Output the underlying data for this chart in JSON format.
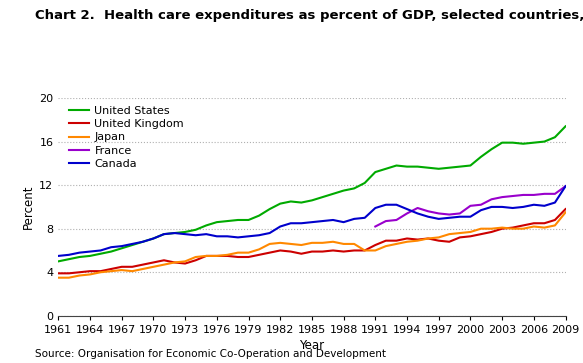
{
  "title": "Chart 2.  Health care expenditures as percent of GDP, selected countries, 1961–2009",
  "xlabel": "Year",
  "ylabel": "Percent",
  "source": "Source: Organisation for Economic Co-Operation and Development",
  "ylim": [
    0,
    20
  ],
  "yticks": [
    0,
    4,
    8,
    12,
    16,
    20
  ],
  "years": [
    1961,
    1962,
    1963,
    1964,
    1965,
    1966,
    1967,
    1968,
    1969,
    1970,
    1971,
    1972,
    1973,
    1974,
    1975,
    1976,
    1977,
    1978,
    1979,
    1980,
    1981,
    1982,
    1983,
    1984,
    1985,
    1986,
    1987,
    1988,
    1989,
    1990,
    1991,
    1992,
    1993,
    1994,
    1995,
    1996,
    1997,
    1998,
    1999,
    2000,
    2001,
    2002,
    2003,
    2004,
    2005,
    2006,
    2007,
    2008,
    2009
  ],
  "united_states": [
    5.0,
    5.2,
    5.4,
    5.5,
    5.7,
    5.9,
    6.2,
    6.5,
    6.8,
    7.1,
    7.5,
    7.6,
    7.7,
    7.9,
    8.3,
    8.6,
    8.7,
    8.8,
    8.8,
    9.2,
    9.8,
    10.3,
    10.5,
    10.4,
    10.6,
    10.9,
    11.2,
    11.5,
    11.7,
    12.2,
    13.2,
    13.5,
    13.8,
    13.7,
    13.7,
    13.6,
    13.5,
    13.6,
    13.7,
    13.8,
    14.6,
    15.3,
    15.9,
    15.9,
    15.8,
    15.9,
    16.0,
    16.4,
    17.4
  ],
  "united_kingdom": [
    3.9,
    3.9,
    4.0,
    4.1,
    4.1,
    4.3,
    4.5,
    4.5,
    4.7,
    4.9,
    5.1,
    4.9,
    4.8,
    5.1,
    5.5,
    5.5,
    5.5,
    5.4,
    5.4,
    5.6,
    5.8,
    6.0,
    5.9,
    5.7,
    5.9,
    5.9,
    6.0,
    5.9,
    6.0,
    6.0,
    6.5,
    6.9,
    6.9,
    7.1,
    7.0,
    7.1,
    6.9,
    6.8,
    7.2,
    7.3,
    7.5,
    7.7,
    8.0,
    8.1,
    8.3,
    8.5,
    8.5,
    8.8,
    9.8
  ],
  "japan": [
    3.5,
    3.5,
    3.7,
    3.8,
    4.0,
    4.1,
    4.2,
    4.1,
    4.3,
    4.5,
    4.7,
    4.9,
    5.0,
    5.4,
    5.5,
    5.5,
    5.6,
    5.8,
    5.8,
    6.1,
    6.6,
    6.7,
    6.6,
    6.5,
    6.7,
    6.7,
    6.8,
    6.6,
    6.6,
    6.0,
    6.0,
    6.4,
    6.6,
    6.8,
    6.9,
    7.1,
    7.2,
    7.5,
    7.6,
    7.7,
    8.0,
    8.0,
    8.1,
    8.0,
    8.0,
    8.2,
    8.1,
    8.3,
    9.5
  ],
  "france": [
    null,
    null,
    null,
    null,
    null,
    null,
    null,
    null,
    null,
    null,
    null,
    null,
    null,
    null,
    null,
    null,
    null,
    null,
    null,
    null,
    null,
    null,
    null,
    null,
    null,
    null,
    null,
    null,
    null,
    null,
    8.2,
    8.7,
    8.8,
    9.4,
    9.9,
    9.6,
    9.4,
    9.3,
    9.4,
    10.1,
    10.2,
    10.7,
    10.9,
    11.0,
    11.1,
    11.1,
    11.2,
    11.2,
    11.9
  ],
  "canada": [
    5.5,
    5.6,
    5.8,
    5.9,
    6.0,
    6.3,
    6.4,
    6.6,
    6.8,
    7.1,
    7.5,
    7.6,
    7.5,
    7.4,
    7.5,
    7.3,
    7.3,
    7.2,
    7.3,
    7.4,
    7.6,
    8.2,
    8.5,
    8.5,
    8.6,
    8.7,
    8.8,
    8.6,
    8.9,
    9.0,
    9.9,
    10.2,
    10.2,
    9.8,
    9.4,
    9.1,
    8.9,
    9.0,
    9.1,
    9.1,
    9.7,
    10.0,
    10.0,
    9.9,
    10.0,
    10.2,
    10.1,
    10.4,
    11.9
  ],
  "colors": {
    "united_states": "#00aa00",
    "united_kingdom": "#cc0000",
    "japan": "#ff8800",
    "france": "#9900cc",
    "canada": "#0000cc"
  },
  "xtick_years": [
    1961,
    1964,
    1967,
    1970,
    1973,
    1976,
    1979,
    1982,
    1985,
    1988,
    1991,
    1994,
    1997,
    2000,
    2003,
    2006,
    2009
  ],
  "background_color": "#ffffff",
  "grid_color": "#b0b0b0",
  "title_fontsize": 9.5,
  "axis_fontsize": 8.5,
  "tick_fontsize": 8,
  "source_fontsize": 7.5,
  "legend_fontsize": 8
}
